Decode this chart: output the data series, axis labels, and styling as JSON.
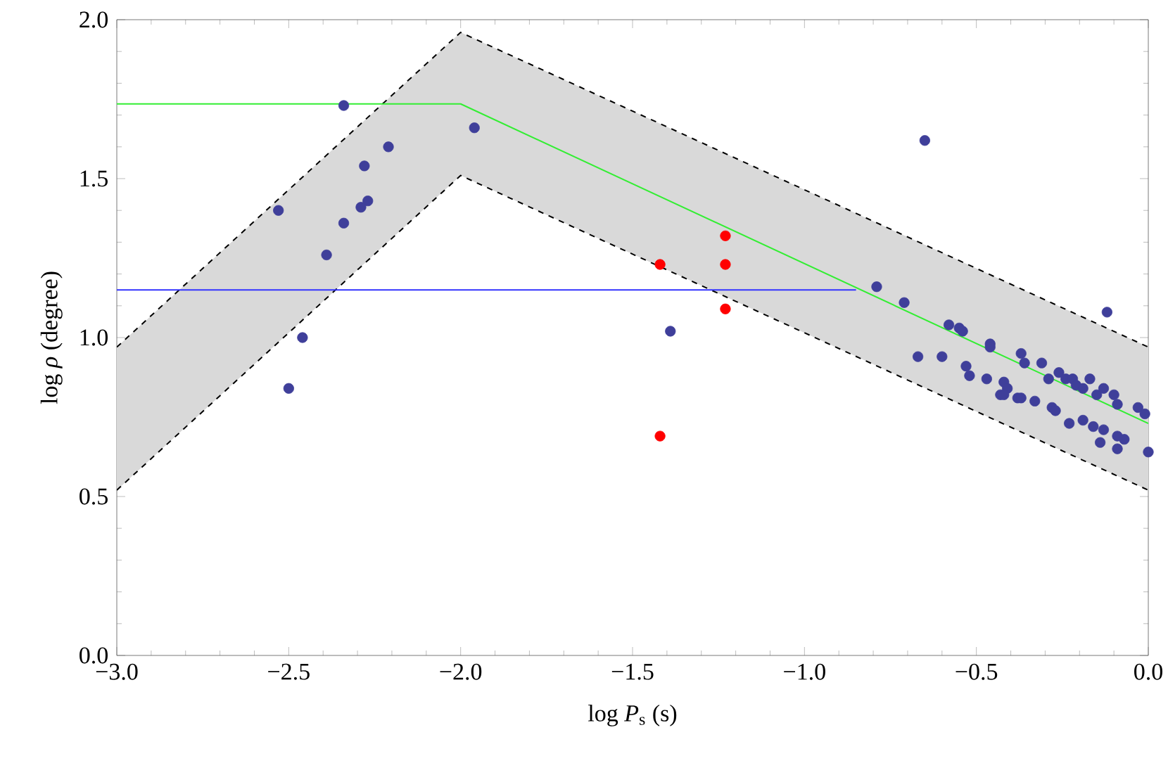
{
  "chart_data": {
    "type": "scatter",
    "xlabel": "log *P*$_{s}$ (s)",
    "ylabel": "log *ρ* (degree)",
    "xlim": [
      -3,
      0
    ],
    "ylim": [
      0,
      2
    ],
    "xticks": [
      {
        "value": -3,
        "label": "−3.0"
      },
      {
        "value": -2.5,
        "label": "−2.5"
      },
      {
        "value": -2,
        "label": "−2.0"
      },
      {
        "value": -1.5,
        "label": "−1.5"
      },
      {
        "value": -1,
        "label": "−1.0"
      },
      {
        "value": -0.5,
        "label": "−0.5"
      },
      {
        "value": 0,
        "label": "0.0"
      }
    ],
    "yticks": [
      {
        "value": 0,
        "label": "0.0"
      },
      {
        "value": 0.5,
        "label": "0.5"
      },
      {
        "value": 1,
        "label": "1.0"
      },
      {
        "value": 1.5,
        "label": "1.5"
      },
      {
        "value": 2,
        "label": "2.0"
      }
    ],
    "grid": false,
    "series": [
      {
        "type": "area",
        "color": "#d9d9d9",
        "x": [
          -3,
          -2,
          0
        ],
        "values": [
          null,
          null,
          null
        ],
        "lower": [
          0.52,
          1.51,
          0.52
        ],
        "upper": [
          0.97,
          1.96,
          0.97
        ]
      },
      {
        "type": "line",
        "color": "#000000",
        "line_style": "dashed",
        "x": [
          -3,
          -2,
          0
        ],
        "values": [
          0.97,
          1.96,
          0.97
        ]
      },
      {
        "type": "line",
        "color": "#000000",
        "line_style": "dashed",
        "x": [
          -3,
          -2,
          0
        ],
        "values": [
          0.52,
          1.51,
          0.52
        ]
      },
      {
        "type": "line",
        "color": "#33ee33",
        "line_style": "solid",
        "x": [
          -3,
          -2,
          0
        ],
        "values": [
          1.735,
          1.735,
          0.73
        ]
      },
      {
        "type": "line",
        "color": "#3333ff",
        "line_style": "solid",
        "x": [
          -3,
          -0.85
        ],
        "values": [
          1.15,
          1.15
        ]
      },
      {
        "color": "#3f3f9a",
        "marker": "circle",
        "x": [
          -2.34,
          -1.96,
          -2.21,
          -2.28,
          -2.27,
          -2.29,
          -2.53,
          -2.34,
          -2.39,
          -2.46,
          -2.5,
          -1.39,
          -0.79,
          -0.65,
          -0.71,
          -0.12,
          -0.58,
          -0.55,
          -0.54,
          -0.67,
          -0.6,
          -0.46,
          -0.46,
          -0.37,
          -0.36,
          -0.31,
          -0.53,
          -0.52,
          -0.47,
          -0.29,
          -0.26,
          -0.24,
          -0.22,
          -0.21,
          -0.19,
          -0.17,
          -0.42,
          -0.41,
          -0.43,
          -0.42,
          -0.38,
          -0.37,
          -0.33,
          -0.15,
          -0.13,
          -0.1,
          -0.09,
          -0.03,
          -0.01,
          -0.28,
          -0.27,
          -0.23,
          -0.19,
          -0.16,
          -0.13,
          -0.14,
          -0.09,
          -0.07,
          -0.09,
          0.0
        ],
        "values": [
          1.73,
          1.66,
          1.6,
          1.54,
          1.43,
          1.41,
          1.4,
          1.36,
          1.26,
          1.0,
          0.84,
          1.02,
          1.16,
          1.62,
          1.11,
          1.08,
          1.04,
          1.03,
          1.02,
          0.94,
          0.94,
          0.98,
          0.97,
          0.95,
          0.92,
          0.92,
          0.91,
          0.88,
          0.87,
          0.87,
          0.89,
          0.87,
          0.87,
          0.85,
          0.84,
          0.87,
          0.86,
          0.84,
          0.82,
          0.82,
          0.81,
          0.81,
          0.8,
          0.82,
          0.84,
          0.82,
          0.79,
          0.78,
          0.76,
          0.78,
          0.77,
          0.73,
          0.74,
          0.72,
          0.71,
          0.67,
          0.69,
          0.68,
          0.65,
          0.64
        ]
      },
      {
        "color": "#ff0000",
        "marker": "circle",
        "x": [
          -1.23,
          -1.42,
          -1.23,
          -1.23,
          -1.42
        ],
        "values": [
          1.32,
          1.23,
          1.23,
          1.09,
          0.69
        ]
      }
    ]
  }
}
